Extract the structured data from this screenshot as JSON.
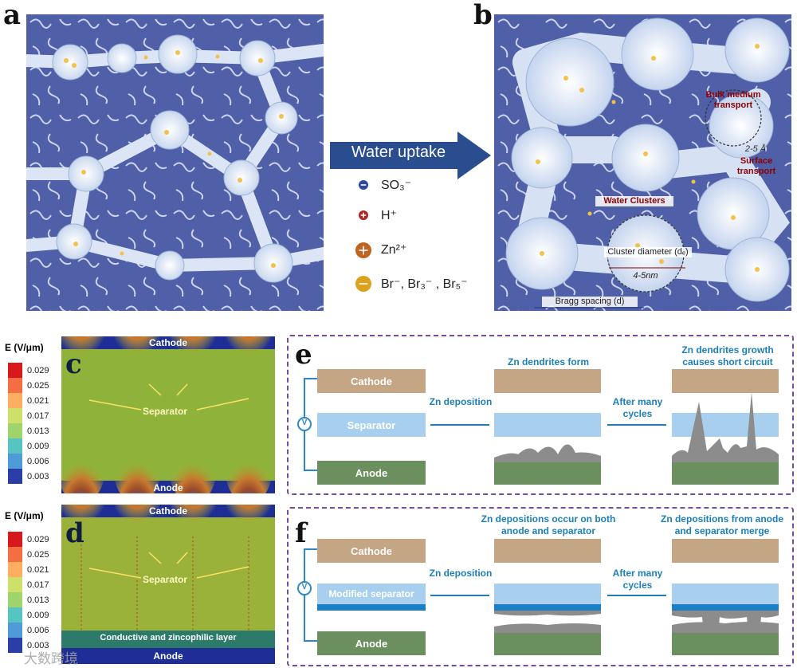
{
  "panels": {
    "a": "a",
    "b": "b",
    "c": "c",
    "d": "d",
    "e": "e",
    "f": "f"
  },
  "arrow": {
    "label": "Water uptake"
  },
  "ions": [
    {
      "symbol": "minus",
      "label": "SO₃⁻",
      "color": "#2b4a9a"
    },
    {
      "symbol": "plus",
      "label": "H⁺",
      "color": "#b22222"
    },
    {
      "symbol": "plus",
      "label": "Zn²⁺",
      "color": "#c0631e"
    },
    {
      "symbol": "minus",
      "label": "Br⁻, Br₃⁻ , Br₅⁻",
      "color": "#d9a21a"
    }
  ],
  "panel_b": {
    "bulk": "Bulk medium transport",
    "surface": "Surface transport",
    "size": "2-5 Å",
    "water_clusters": "Water Clusters",
    "cluster_diameter": "Cluster diameter (dₑ)",
    "cluster_size": "4-5nm",
    "bragg": "Bragg spacing (d)"
  },
  "legend": {
    "title": "E (V/μm)",
    "ticks": [
      "0.029",
      "0.025",
      "0.021",
      "0.017",
      "0.013",
      "0.009",
      "0.006",
      "0.003"
    ],
    "colors": [
      "#d7191c",
      "#f46d43",
      "#fdae61",
      "#cfe06a",
      "#9fd36b",
      "#56c4c0",
      "#4f9ad8",
      "#2b3ea8"
    ]
  },
  "panel_c": {
    "top": "Cathode",
    "bottom": "Anode",
    "separator": "Separator"
  },
  "panel_d": {
    "top": "Cathode",
    "layer": "Conductive and zincophilic layer",
    "bottom": "Anode",
    "separator": "Separator"
  },
  "panel_e": {
    "cathode": "Cathode",
    "separator": "Separator",
    "anode": "Anode",
    "v": "V",
    "step1": "Zn deposition",
    "step2": "After many cycles",
    "cap1": "Zn dendrites form",
    "cap2": "Zn dendrites growth causes short circuit"
  },
  "panel_f": {
    "cathode": "Cathode",
    "separator": "Modified separator",
    "anode": "Anode",
    "v": "V",
    "step1": "Zn deposition",
    "step2": "After many cycles",
    "cap1": "Zn depositions occur on both anode and separator",
    "cap2": "Zn depositions from anode and separator merge"
  },
  "watermark": "大数跨境"
}
